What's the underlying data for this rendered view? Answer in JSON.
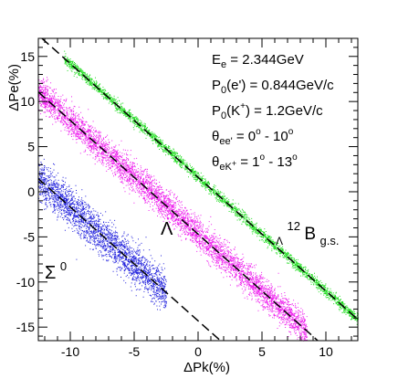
{
  "chart_data": {
    "type": "scatter",
    "title": "",
    "xlabel": "ΔPk(%)",
    "ylabel": "ΔPe(%)",
    "xlim": [
      -12.5,
      12.5
    ],
    "ylim": [
      -16.5,
      17
    ],
    "x_ticks": [
      -10,
      -5,
      0,
      5,
      10
    ],
    "y_ticks": [
      -15,
      -10,
      -5,
      0,
      5,
      10,
      15
    ],
    "x_tick_labels": [
      "-10",
      "-5",
      "0",
      "5",
      "10"
    ],
    "y_tick_labels": [
      "-15",
      "-10",
      "-5",
      "0",
      "5",
      "10",
      "15"
    ],
    "grid": false,
    "legend": "none",
    "series": [
      {
        "label_main": "Λ",
        "label_sup": "12",
        "label_sub": "Λ",
        "label_base": "B",
        "label_sub2": "g.s.",
        "color": "#22dd22",
        "x_range": [
          -10.5,
          12.5
        ],
        "line": {
          "slope": -1.26,
          "intercept": 1.6
        },
        "band_width": 0.5,
        "density": 3000
      },
      {
        "label": "Λ",
        "color": "#ee22ee",
        "x_range": [
          -12.5,
          8.5
        ],
        "line": {
          "slope": -1.26,
          "intercept": -4.7
        },
        "band_width": 1.4,
        "density": 5200
      },
      {
        "label_base": "Σ",
        "label_sup": "0",
        "color": "#2222dd",
        "x_range": [
          -12.5,
          -2.5
        ],
        "line": {
          "slope": -1.26,
          "intercept": -14.3
        },
        "band_width": 1.8,
        "density": 2600
      }
    ],
    "dashed_lines": [
      {
        "slope": -1.26,
        "intercept": 1.6
      },
      {
        "slope": -1.26,
        "intercept": -4.7
      },
      {
        "slope": -1.26,
        "intercept": -14.3
      }
    ],
    "annotations": [
      {
        "base": "E",
        "sub": "e",
        "rest": " = 2.344GeV"
      },
      {
        "base": "P",
        "sub": "0",
        "rest": "(e') = 0.844GeV/c"
      },
      {
        "base": "P",
        "sub": "0",
        "rest": "(K",
        "sup": "+",
        "rest2": ") = 1.2GeV/c"
      },
      {
        "base": "θ",
        "sub": "ee'",
        "rest": " = 0",
        "sup": "o",
        "rest2": " - 10",
        "sup2": "o"
      },
      {
        "base": "θ",
        "sub": "eK",
        "subsup": "+",
        "rest": " = 1",
        "sup": "o",
        "rest2": " - 13",
        "sup2": "o"
      }
    ]
  }
}
